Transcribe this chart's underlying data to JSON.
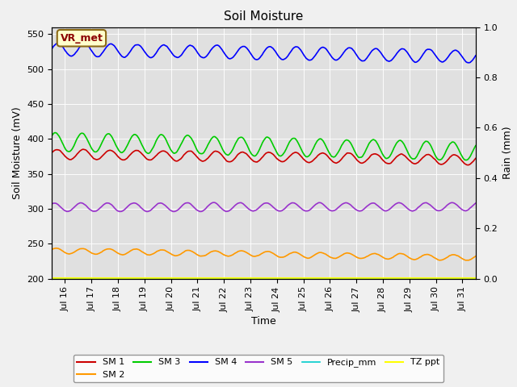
{
  "title": "Soil Moisture",
  "xlabel": "Time",
  "ylabel_left": "Soil Moisture (mV)",
  "ylabel_right": "Rain (mm)",
  "xlim_days": [
    15.5,
    31.5
  ],
  "ylim_left": [
    200,
    560
  ],
  "ylim_right": [
    0.0,
    1.0
  ],
  "yticks_left": [
    200,
    250,
    300,
    350,
    400,
    450,
    500,
    550
  ],
  "yticks_right": [
    0.0,
    0.2,
    0.4,
    0.6,
    0.8,
    1.0
  ],
  "xtick_positions": [
    16,
    17,
    18,
    19,
    20,
    21,
    22,
    23,
    24,
    25,
    26,
    27,
    28,
    29,
    30,
    31
  ],
  "xtick_labels": [
    "Jul 16",
    "Jul 17",
    "Jul 18",
    "Jul 19",
    "Jul 20",
    "Jul 21",
    "Jul 22",
    "Jul 23",
    "Jul 24",
    "Jul 25",
    "Jul 26",
    "Jul 27",
    "Jul 28",
    "Jul 29",
    "Jul 30",
    "Jul 31"
  ],
  "background_color": "#f0f0f0",
  "plot_bg_color": "#e0e0e0",
  "sm1_color": "#cc0000",
  "sm2_color": "#ff9900",
  "sm3_color": "#00cc00",
  "sm4_color": "#0000ff",
  "sm5_color": "#9933cc",
  "precip_color": "#00cccc",
  "tz_color": "#ffff00",
  "vr_met_text_color": "#8b0000",
  "vr_met_bg": "#ffffcc",
  "vr_met_border": "#8b6914",
  "n_points": 800,
  "sm1_base": 378,
  "sm1_amp": 7,
  "sm1_trend": -8,
  "sm2_base": 240,
  "sm2_amp": 4,
  "sm2_trend": -10,
  "sm3_base": 396,
  "sm3_amp": 13,
  "sm3_trend": -14,
  "sm4_base": 528,
  "sm4_amp": 9,
  "sm4_trend": -10,
  "sm5_base": 302,
  "sm5_amp": 6,
  "sm5_trend": 1,
  "cycles_per_day": 1.0
}
